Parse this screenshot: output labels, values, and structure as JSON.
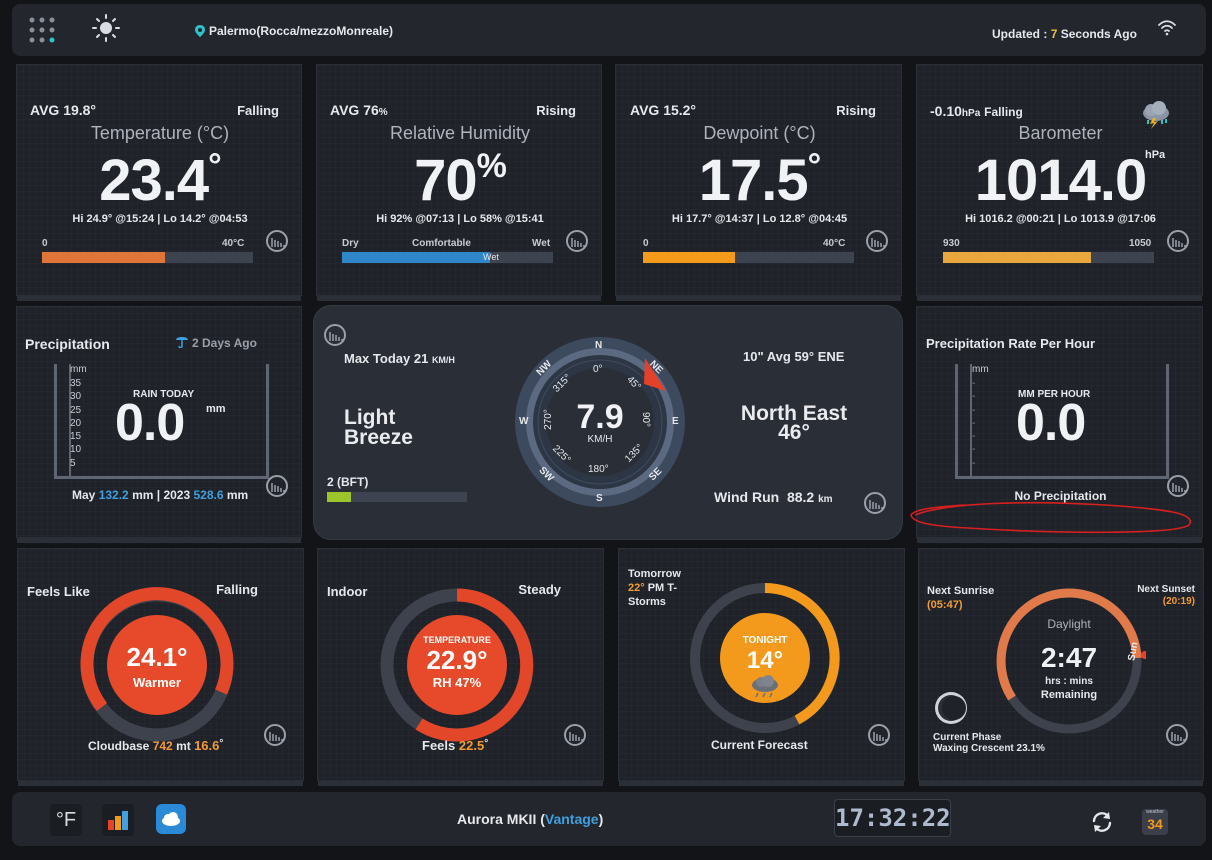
{
  "header": {
    "location": "Palermo(Rocca/mezzoMonreale)",
    "updated_prefix": "Updated :",
    "updated_value": "7",
    "updated_suffix": "Seconds Ago"
  },
  "temperature": {
    "avg": "AVG 19.8°",
    "trend": "Falling",
    "title": "Temperature (°C)",
    "value": "23.4",
    "deg": "°",
    "hilo": "Hi 24.9° @15:24 | Lo 14.2° @04:53",
    "scale_min": "0",
    "scale_max": "40°C",
    "fill_fraction": 0.585,
    "color": "#e0753a"
  },
  "humidity": {
    "avg": "AVG 76",
    "avg_unit": "%",
    "trend": "Rising",
    "title": "Relative Humidity",
    "value": "70",
    "unit": "%",
    "hilo": "Hi 92% @07:13 | Lo 58% @15:41",
    "scale_left": "Dry",
    "scale_mid": "Comfortable",
    "scale_right": "Wet",
    "bar_label": "Wet",
    "fill_fraction": 0.7,
    "color": "#2f86c8"
  },
  "dewpoint": {
    "avg": "AVG 15.2°",
    "trend": "Rising",
    "title": "Dewpoint (°C)",
    "value": "17.5",
    "deg": "°",
    "hilo": "Hi 17.7° @14:37 | Lo 12.8° @04:45",
    "scale_min": "0",
    "scale_max": "40°C",
    "fill_fraction": 0.4375,
    "color": "#f59b1c"
  },
  "barometer": {
    "change": "-0.10",
    "change_unit": "hPa",
    "trend": "Falling",
    "title": "Barometer",
    "value": "1014.0",
    "unit": "hPa",
    "hilo": "Hi 1016.2 @00:21 | Lo 1013.9 @17:06",
    "scale_min": "930",
    "scale_max": "1050",
    "fill_fraction": 0.7,
    "color": "#e8a83e",
    "icon": "storm-cloud-icon"
  },
  "precipitation": {
    "title": "Precipitation",
    "last_rain": "2 Days Ago",
    "unit_axis": "mm",
    "ticks": [
      "35",
      "30",
      "25",
      "20",
      "15",
      "10",
      "5"
    ],
    "label": "RAIN TODAY",
    "value": "0.0",
    "unit": "mm",
    "month_label": "May",
    "month_value": "132.2",
    "year_label": "2023",
    "year_value": "528.6",
    "mm": "mm"
  },
  "wind": {
    "max_today_label": "Max Today",
    "max_today_value": "21",
    "max_unit": "KM/H",
    "description_line1": "Light",
    "description_line2": "Breeze",
    "bft": "2 (BFT)",
    "bft_fraction": 0.17,
    "avg10": "10\" Avg 59° ENE",
    "direction": "North East",
    "direction_deg": "46°",
    "wind_run_label": "Wind Run",
    "wind_run_value": "88.2",
    "wind_run_unit": "km",
    "speed": "7.9",
    "speed_unit": "KM/H",
    "compass": {
      "N": "N",
      "NE": "NE",
      "E": "E",
      "SE": "SE",
      "S": "S",
      "SW": "SW",
      "W": "W",
      "NW": "NW",
      "d0": "0°",
      "d45": "45°",
      "d90": "90°",
      "d135": "135°",
      "d180": "180°",
      "d225": "225°",
      "d270": "270°",
      "d315": "315°"
    }
  },
  "rain_rate": {
    "title": "Precipitation Rate Per Hour",
    "unit_axis": "mm",
    "label": "MM PER HOUR",
    "value": "0.0",
    "status": "No Precipitation"
  },
  "feels_like": {
    "title": "Feels Like",
    "trend": "Falling",
    "value": "24.1°",
    "sub": "Warmer",
    "cloudbase_label": "Cloudbase",
    "cloudbase_value": "742",
    "cloudbase_unit": "mt",
    "cloudbase_temp": "16.6",
    "deg": "°"
  },
  "indoor": {
    "title": "Indoor",
    "trend": "Steady",
    "label": "TEMPERATURE",
    "value": "22.9°",
    "rh": "RH 47%",
    "feels_label": "Feels",
    "feels_value": "22.5",
    "deg": "°"
  },
  "forecast": {
    "tomorrow": "Tomorrow",
    "tomorrow_temp": "22°",
    "tomorrow_desc": "PM T-Storms",
    "tonight_label": "TONIGHT",
    "tonight_value": "14°",
    "caption": "Current Forecast"
  },
  "sun": {
    "sunrise_label": "Next Sunrise",
    "sunrise_time": "05:47",
    "sunset_label": "Next Sunset",
    "sunset_time": "20:19",
    "daylight": "Daylight",
    "remaining": "2:47",
    "hrs_mins": "hrs : mins",
    "remaining_label": "Remaining",
    "sun_label": "Sun",
    "phase_label": "Current Phase",
    "phase_value": "Waxing Crescent 23.1%"
  },
  "footer": {
    "unit_toggle": "°F",
    "station_name": "Aurora MKII",
    "station_model": "Vantage",
    "clock": "17:32:22",
    "badge_top": "weather",
    "badge_num": "34"
  }
}
